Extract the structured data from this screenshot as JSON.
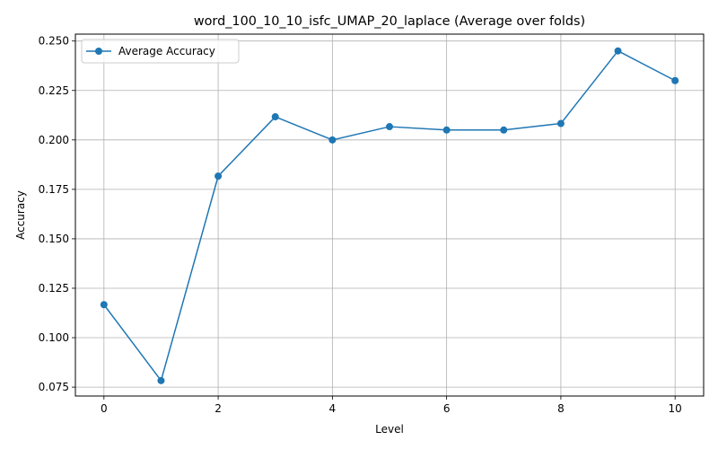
{
  "chart_data": {
    "type": "line",
    "title": "word_100_10_10_isfc_UMAP_20_laplace (Average over folds)",
    "xlabel": "Level",
    "ylabel": "Accuracy",
    "xlim": [
      -0.5,
      10.5
    ],
    "ylim": [
      0.0705,
      0.2535
    ],
    "xticks": [
      0,
      2,
      4,
      6,
      8,
      10
    ],
    "xtick_labels": [
      "0",
      "2",
      "4",
      "6",
      "8",
      "10"
    ],
    "yticks": [
      0.075,
      0.1,
      0.125,
      0.15,
      0.175,
      0.2,
      0.225,
      0.25
    ],
    "ytick_labels": [
      "0.075",
      "0.100",
      "0.125",
      "0.150",
      "0.175",
      "0.200",
      "0.225",
      "0.250"
    ],
    "grid": true,
    "legend_position": "upper-left",
    "series": [
      {
        "name": "Average Accuracy",
        "color": "#1f77b4",
        "marker": "circle",
        "x": [
          0,
          1,
          2,
          3,
          4,
          5,
          6,
          7,
          8,
          9,
          10
        ],
        "y": [
          0.1167,
          0.0783,
          0.1817,
          0.2117,
          0.2,
          0.2067,
          0.205,
          0.205,
          0.2083,
          0.245,
          0.23
        ]
      }
    ]
  }
}
